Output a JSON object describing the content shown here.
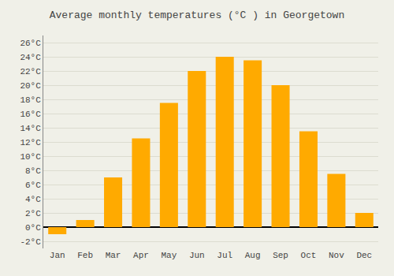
{
  "chart_data": {
    "type": "bar",
    "title": "Average monthly temperatures (°C ) in Georgetown",
    "categories": [
      "Jan",
      "Feb",
      "Mar",
      "Apr",
      "May",
      "Jun",
      "Jul",
      "Aug",
      "Sep",
      "Oct",
      "Nov",
      "Dec"
    ],
    "values": [
      -1,
      1,
      7,
      12.5,
      17.5,
      22,
      24,
      23.5,
      20,
      13.5,
      7.5,
      2
    ],
    "color": "#FFAA00",
    "ylim": [
      -3,
      27
    ],
    "yticks": [
      {
        "value": -2,
        "label": "-2°C"
      },
      {
        "value": 0,
        "label": "0°C"
      },
      {
        "value": 2,
        "label": "2°C"
      },
      {
        "value": 4,
        "label": "4°C"
      },
      {
        "value": 6,
        "label": "6°C"
      },
      {
        "value": 8,
        "label": "8°C"
      },
      {
        "value": 10,
        "label": "10°C"
      },
      {
        "value": 12,
        "label": "12°C"
      },
      {
        "value": 14,
        "label": "14°C"
      },
      {
        "value": 16,
        "label": "16°C"
      },
      {
        "value": 18,
        "label": "18°C"
      },
      {
        "value": 20,
        "label": "20°C"
      },
      {
        "value": 22,
        "label": "22°C"
      },
      {
        "value": 24,
        "label": "24°C"
      },
      {
        "value": 26,
        "label": "26°C"
      }
    ],
    "grid": true
  }
}
